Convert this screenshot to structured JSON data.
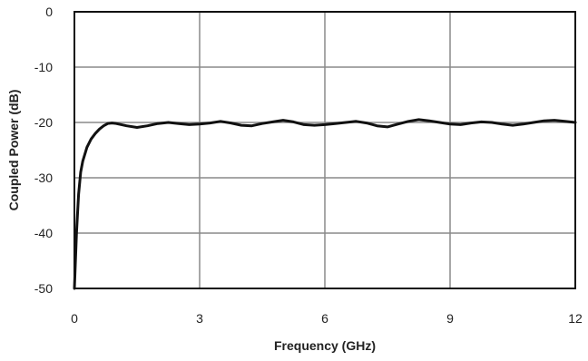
{
  "chart_data": {
    "type": "line",
    "title": "",
    "xlabel": "Frequency (GHz)",
    "ylabel": "Coupled Power (dB)",
    "xlim": [
      0,
      12
    ],
    "ylim": [
      -50,
      0
    ],
    "x_ticks": [
      0,
      3,
      6,
      9,
      12
    ],
    "y_ticks": [
      0,
      -10,
      -20,
      -30,
      -40,
      -50
    ],
    "x_tick_labels": [
      "0",
      "3",
      "6",
      "9",
      "12"
    ],
    "y_tick_labels": [
      "0",
      "-10",
      "-20",
      "-30",
      "-40",
      "-50"
    ],
    "grid": true,
    "legend": "none",
    "series": [
      {
        "color": "#111111",
        "x": [
          0.0,
          0.05,
          0.1,
          0.15,
          0.2,
          0.3,
          0.4,
          0.5,
          0.6,
          0.7,
          0.8,
          0.9,
          1.0,
          1.25,
          1.5,
          1.75,
          2.0,
          2.25,
          2.5,
          2.75,
          3.0,
          3.25,
          3.5,
          3.75,
          4.0,
          4.25,
          4.5,
          4.75,
          5.0,
          5.25,
          5.5,
          5.75,
          6.0,
          6.25,
          6.5,
          6.75,
          7.0,
          7.25,
          7.5,
          7.75,
          8.0,
          8.25,
          8.5,
          8.75,
          9.0,
          9.25,
          9.5,
          9.75,
          10.0,
          10.25,
          10.5,
          10.75,
          11.0,
          11.25,
          11.5,
          11.75,
          12.0
        ],
        "y": [
          -50,
          -40,
          -33,
          -29,
          -27,
          -24.5,
          -23,
          -22,
          -21.2,
          -20.6,
          -20.2,
          -20.1,
          -20.2,
          -20.6,
          -20.9,
          -20.6,
          -20.2,
          -20.0,
          -20.2,
          -20.4,
          -20.3,
          -20.1,
          -19.8,
          -20.1,
          -20.5,
          -20.6,
          -20.2,
          -19.9,
          -19.6,
          -19.9,
          -20.4,
          -20.5,
          -20.4,
          -20.2,
          -20.0,
          -19.8,
          -20.1,
          -20.6,
          -20.8,
          -20.3,
          -19.8,
          -19.5,
          -19.7,
          -20.0,
          -20.3,
          -20.4,
          -20.1,
          -19.9,
          -20.0,
          -20.3,
          -20.5,
          -20.3,
          -20.0,
          -19.7,
          -19.6,
          -19.8,
          -20.0
        ]
      }
    ]
  }
}
